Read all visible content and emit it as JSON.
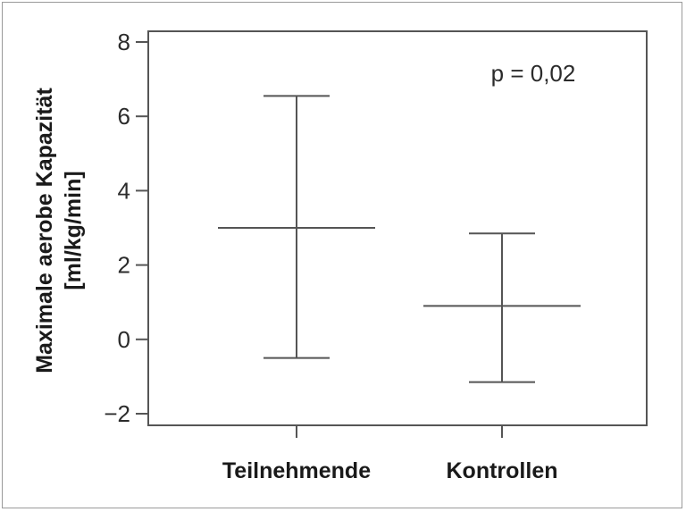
{
  "chart_data": {
    "type": "errorbar",
    "categories": [
      "Teilnehmende",
      "Kontrollen"
    ],
    "series": [
      {
        "center": [
          3.0,
          0.9
        ],
        "lower": [
          -0.5,
          -1.15
        ],
        "upper": [
          6.55,
          2.85
        ]
      }
    ],
    "ylabel_line1": "Maximale aerobe Kapazität",
    "ylabel_line2": "[ml/kg/min]",
    "annotation": "p = 0,02",
    "yticks": [
      -2,
      0,
      2,
      4,
      6,
      8
    ],
    "ytick_labels": [
      "−2",
      "0",
      "2",
      "4",
      "6",
      "8"
    ],
    "ylim": [
      -2.3,
      8.3
    ],
    "grid": false,
    "colors": {
      "line": "#555555",
      "axis": "#555555"
    }
  }
}
